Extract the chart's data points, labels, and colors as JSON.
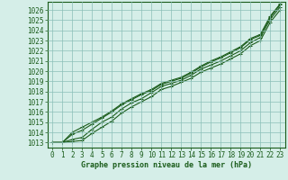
{
  "xlabel": "Graphe pression niveau de la mer (hPa)",
  "ylim": [
    1012.5,
    1026.8
  ],
  "xlim": [
    -0.5,
    23.5
  ],
  "yticks": [
    1013,
    1014,
    1015,
    1016,
    1017,
    1018,
    1019,
    1020,
    1021,
    1022,
    1023,
    1024,
    1025,
    1026
  ],
  "xticks": [
    0,
    1,
    2,
    3,
    4,
    5,
    6,
    7,
    8,
    9,
    10,
    11,
    12,
    13,
    14,
    15,
    16,
    17,
    18,
    19,
    20,
    21,
    22,
    23
  ],
  "bg_color": "#d5eee8",
  "line_color": "#1a5c1a",
  "grid_color": "#8bbfb8",
  "series": [
    [
      1013.0,
      1013.0,
      1013.1,
      1013.2,
      1013.9,
      1014.5,
      1015.1,
      1015.9,
      1016.5,
      1017.0,
      1017.5,
      1018.2,
      1018.5,
      1018.9,
      1019.3,
      1019.9,
      1020.3,
      1020.7,
      1021.2,
      1021.7,
      1022.5,
      1023.0,
      1024.8,
      1026.0
    ],
    [
      1013.0,
      1013.0,
      1013.3,
      1013.5,
      1014.3,
      1015.0,
      1015.5,
      1016.3,
      1016.9,
      1017.3,
      1017.9,
      1018.5,
      1018.8,
      1019.1,
      1019.6,
      1020.2,
      1020.6,
      1021.0,
      1021.5,
      1022.0,
      1022.8,
      1023.3,
      1025.1,
      1026.3
    ],
    [
      1013.0,
      1013.0,
      1013.8,
      1014.2,
      1014.8,
      1015.4,
      1016.0,
      1016.7,
      1017.2,
      1017.7,
      1018.1,
      1018.7,
      1019.0,
      1019.3,
      1019.8,
      1020.4,
      1020.9,
      1021.3,
      1021.8,
      1022.3,
      1023.1,
      1023.5,
      1025.3,
      1026.5
    ],
    [
      1013.0,
      1013.0,
      1014.0,
      1014.5,
      1015.0,
      1015.5,
      1016.1,
      1016.8,
      1017.3,
      1017.8,
      1018.2,
      1018.8,
      1019.1,
      1019.4,
      1019.9,
      1020.5,
      1021.0,
      1021.4,
      1021.9,
      1022.4,
      1023.2,
      1023.6,
      1025.4,
      1026.6
    ]
  ],
  "marker": "+",
  "markersize": 3,
  "linewidth": 0.8,
  "tick_fontsize": 5.5,
  "xlabel_fontsize": 6.0
}
